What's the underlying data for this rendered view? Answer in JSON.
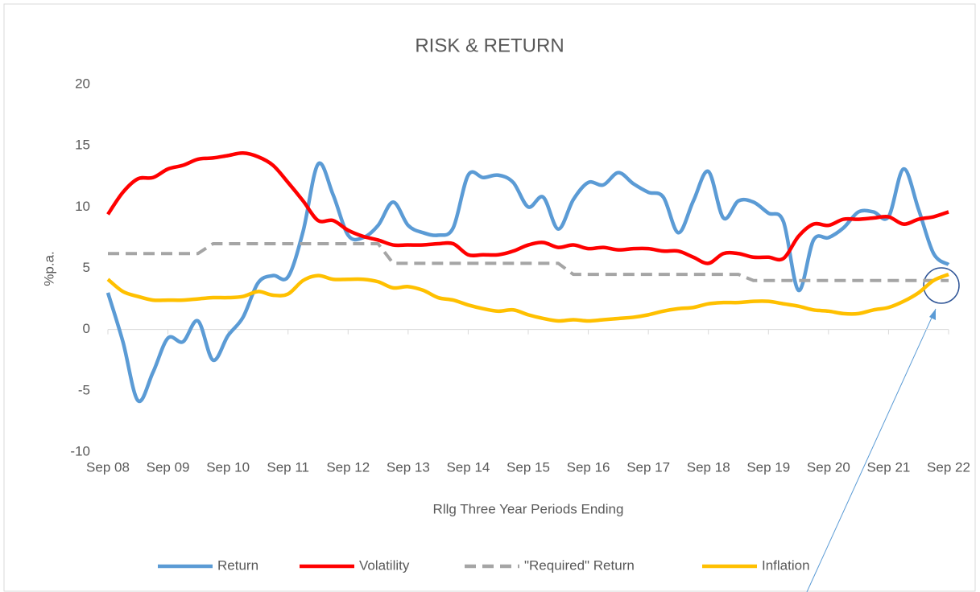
{
  "chart_data": {
    "type": "line",
    "title": "RISK & RETURN",
    "y_label": "%p.a.",
    "x_label": "Rllg Three Year Periods Ending",
    "categories": [
      "Sep 08",
      null,
      null,
      null,
      "Sep 09",
      null,
      null,
      null,
      "Sep 10",
      null,
      null,
      null,
      "Sep 11",
      null,
      null,
      null,
      "Sep 12",
      null,
      null,
      null,
      "Sep 13",
      null,
      null,
      null,
      "Sep 14",
      null,
      null,
      null,
      "Sep 15",
      null,
      null,
      null,
      "Sep 16",
      null,
      null,
      null,
      "Sep 17",
      null,
      null,
      null,
      "Sep 18",
      null,
      null,
      null,
      "Sep 19",
      null,
      null,
      null,
      "Sep 20",
      null,
      null,
      null,
      "Sep 21",
      null,
      null,
      null,
      "Sep 22"
    ],
    "series": [
      {
        "name": "Return",
        "color": "#5b9bd5",
        "style": "solid",
        "values": [
          3,
          -1,
          -5.8,
          -3.5,
          -0.7,
          -1,
          0.7,
          -2.5,
          -0.5,
          1,
          3.8,
          4.4,
          4.3,
          8,
          13.5,
          11,
          7.7,
          7.5,
          8.5,
          10.4,
          8.5,
          7.9,
          7.7,
          8.3,
          12.6,
          12.4,
          12.6,
          12,
          10,
          10.8,
          8.2,
          10.6,
          12,
          11.8,
          12.8,
          11.9,
          11.2,
          10.8,
          7.9,
          10.5,
          12.9,
          9.1,
          10.5,
          10.4,
          9.5,
          8.8,
          3.2,
          7.3,
          7.5,
          8.3,
          9.6,
          9.6,
          9.2,
          13.1,
          9.8,
          6.2,
          5.3
        ]
      },
      {
        "name": "Volatility",
        "color": "#ff0000",
        "style": "solid",
        "values": [
          9.4,
          11.2,
          12.3,
          12.4,
          13.1,
          13.4,
          13.9,
          14,
          14.2,
          14.4,
          14.1,
          13.4,
          12,
          10.5,
          8.9,
          8.9,
          8.1,
          7.6,
          7.3,
          6.9,
          6.9,
          6.9,
          7,
          7,
          6.1,
          6.1,
          6.1,
          6.4,
          6.9,
          7.1,
          6.7,
          6.9,
          6.6,
          6.7,
          6.5,
          6.6,
          6.6,
          6.4,
          6.4,
          5.9,
          5.4,
          6.2,
          6.2,
          5.9,
          5.9,
          5.8,
          7.6,
          8.6,
          8.5,
          9,
          9,
          9.1,
          9.2,
          8.6,
          9,
          9.2,
          9.6
        ]
      },
      {
        "name": "\"Required\" Return",
        "color": "#a5a5a5",
        "style": "dashed",
        "values": [
          6.2,
          6.2,
          6.2,
          6.2,
          6.2,
          6.2,
          6.2,
          7,
          7,
          7,
          7,
          7,
          7,
          7,
          7,
          7,
          7,
          7,
          7,
          5.4,
          5.4,
          5.4,
          5.4,
          5.4,
          5.4,
          5.4,
          5.4,
          5.4,
          5.4,
          5.4,
          5.4,
          4.5,
          4.5,
          4.5,
          4.5,
          4.5,
          4.5,
          4.5,
          4.5,
          4.5,
          4.5,
          4.5,
          4.5,
          4,
          4,
          4,
          4,
          4,
          4,
          4,
          4,
          4,
          4,
          4,
          4,
          4,
          4
        ]
      },
      {
        "name": "Inflation",
        "color": "#ffc000",
        "style": "solid",
        "values": [
          4.1,
          3.1,
          2.7,
          2.4,
          2.4,
          2.4,
          2.5,
          2.6,
          2.6,
          2.7,
          3.1,
          2.8,
          2.9,
          4,
          4.4,
          4.1,
          4.1,
          4.1,
          3.9,
          3.4,
          3.5,
          3.2,
          2.6,
          2.4,
          2,
          1.7,
          1.5,
          1.6,
          1.2,
          0.9,
          0.7,
          0.8,
          0.7,
          0.8,
          0.9,
          1,
          1.2,
          1.5,
          1.7,
          1.8,
          2.1,
          2.2,
          2.2,
          2.3,
          2.3,
          2.1,
          1.9,
          1.6,
          1.5,
          1.3,
          1.3,
          1.6,
          1.8,
          2.3,
          3,
          4,
          4.5
        ]
      }
    ],
    "ylim": [
      -10,
      20
    ],
    "yticks": [
      -10,
      -5,
      0,
      5,
      10,
      15,
      20
    ],
    "grid": false,
    "legend": "bottom"
  }
}
